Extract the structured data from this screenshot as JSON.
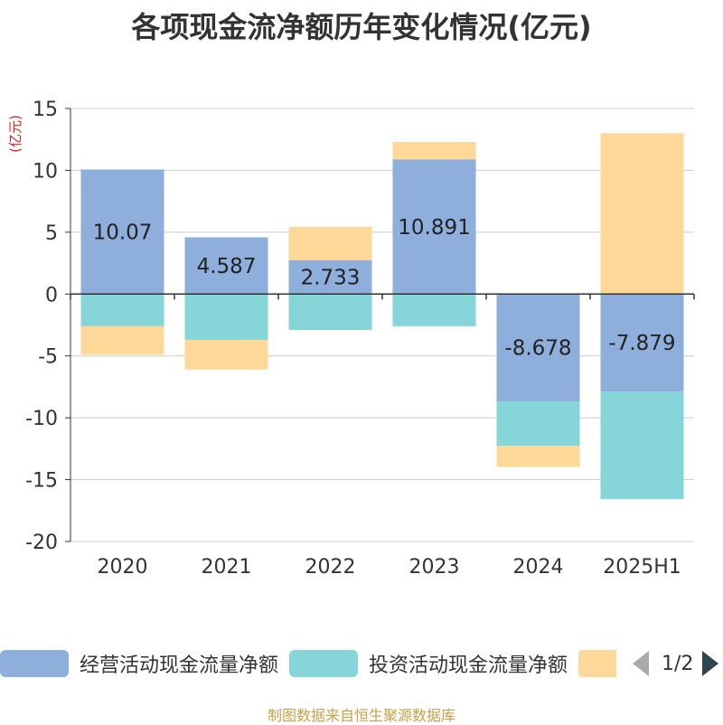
{
  "title": "各项现金流净额历年变化情况(亿元)",
  "source": "制图数据来自恒生聚源数据库",
  "colors": {
    "operating": "#8eaedb",
    "investing": "#86d5d8",
    "financing": "#fed898",
    "axis": "#333333",
    "grid": "#cccccc",
    "unit": "#e02020"
  },
  "legend": {
    "items": [
      "经营活动现金流量净额",
      "投资活动现金流量净额",
      ""
    ],
    "page_label": "1/2"
  },
  "chart_data": {
    "type": "bar",
    "stacked": true,
    "title": "各项现金流净额历年变化情况(亿元)",
    "ylabel": "(亿元)",
    "ylim": [
      -20,
      15
    ],
    "yticks": [
      15,
      10,
      5,
      0,
      -5,
      -10,
      -15,
      -20
    ],
    "categories": [
      "2020",
      "2021",
      "2022",
      "2023",
      "2024",
      "2025H1"
    ],
    "series": [
      {
        "name": "经营活动现金流量净额",
        "key": "operating",
        "values": [
          10.07,
          4.587,
          2.733,
          10.891,
          -8.678,
          -7.879
        ],
        "labels": [
          "10.07",
          "4.587",
          "2.733",
          "10.891",
          "-8.678",
          "-7.879"
        ]
      },
      {
        "name": "投资活动现金流量净额",
        "key": "investing",
        "values": [
          -2.6,
          -3.7,
          -2.9,
          -2.6,
          -3.6,
          -8.7
        ]
      },
      {
        "name": "",
        "key": "financing",
        "values": [
          -2.3,
          -2.4,
          2.7,
          1.4,
          -1.7,
          13.0
        ]
      }
    ]
  }
}
